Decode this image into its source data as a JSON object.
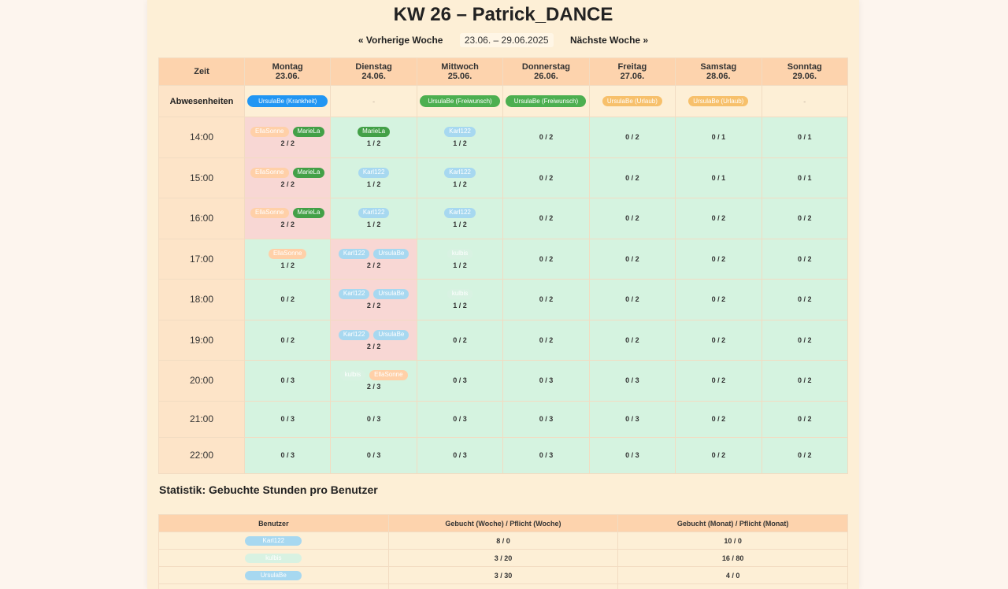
{
  "title": "KW 26 – Patrick_DANCE",
  "nav": {
    "prev": "« Vorherige Woche",
    "range": "23.06. – 29.06.2025",
    "next": "Nächste Woche »"
  },
  "schedule": {
    "time_header": "Zeit",
    "absences_label": "Abwesenheiten",
    "days": [
      {
        "name": "Montag",
        "date": "23.06."
      },
      {
        "name": "Dienstag",
        "date": "24.06."
      },
      {
        "name": "Mittwoch",
        "date": "25.06."
      },
      {
        "name": "Donnerstag",
        "date": "26.06."
      },
      {
        "name": "Freitag",
        "date": "27.06."
      },
      {
        "name": "Samstag",
        "date": "28.06."
      },
      {
        "name": "Sonntag",
        "date": "29.06."
      }
    ],
    "absences": [
      {
        "text": "UrsulaBe (Krankheit)",
        "color": "#2196f3",
        "style": "wide"
      },
      {
        "text": "-",
        "color": "",
        "style": "none"
      },
      {
        "text": "UrsulaBe (Freiwunsch)",
        "color": "#4caf50",
        "style": "wide"
      },
      {
        "text": "UrsulaBe (Freiwunsch)",
        "color": "#4caf50",
        "style": "wide"
      },
      {
        "text": "UrsulaBe (Urlaub)",
        "color": "#f7c06b",
        "style": "small"
      },
      {
        "text": "UrsulaBe (Urlaub)",
        "color": "#f7c06b",
        "style": "small"
      },
      {
        "text": "-",
        "color": "",
        "style": "none"
      }
    ],
    "rows": [
      {
        "time": "14:00",
        "cells": [
          {
            "full": true,
            "count": "2 / 2",
            "chips": [
              {
                "name": "EllaSonne",
                "color": "#ffd0a8"
              },
              {
                "name": "MarieLa",
                "color": "#43a047"
              }
            ]
          },
          {
            "full": false,
            "count": "1 / 2",
            "chips": [
              {
                "name": "MarieLa",
                "color": "#43a047"
              }
            ]
          },
          {
            "full": false,
            "count": "1 / 2",
            "chips": [
              {
                "name": "Karl122",
                "color": "#a7d8f0"
              }
            ]
          },
          {
            "full": false,
            "count": "0 / 2",
            "chips": []
          },
          {
            "full": false,
            "count": "0 / 2",
            "chips": []
          },
          {
            "full": false,
            "count": "0 / 1",
            "chips": []
          },
          {
            "full": false,
            "count": "0 / 1",
            "chips": []
          }
        ]
      },
      {
        "time": "15:00",
        "cells": [
          {
            "full": true,
            "count": "2 / 2",
            "chips": [
              {
                "name": "EllaSonne",
                "color": "#ffd0a8"
              },
              {
                "name": "MarieLa",
                "color": "#43a047"
              }
            ]
          },
          {
            "full": false,
            "count": "1 / 2",
            "chips": [
              {
                "name": "Karl122",
                "color": "#a7d8f0"
              }
            ]
          },
          {
            "full": false,
            "count": "1 / 2",
            "chips": [
              {
                "name": "Karl122",
                "color": "#a7d8f0"
              }
            ]
          },
          {
            "full": false,
            "count": "0 / 2",
            "chips": []
          },
          {
            "full": false,
            "count": "0 / 2",
            "chips": []
          },
          {
            "full": false,
            "count": "0 / 1",
            "chips": []
          },
          {
            "full": false,
            "count": "0 / 1",
            "chips": []
          }
        ]
      },
      {
        "time": "16:00",
        "cells": [
          {
            "full": true,
            "count": "2 / 2",
            "chips": [
              {
                "name": "EllaSonne",
                "color": "#ffd0a8"
              },
              {
                "name": "MarieLa",
                "color": "#43a047"
              }
            ]
          },
          {
            "full": false,
            "count": "1 / 2",
            "chips": [
              {
                "name": "Karl122",
                "color": "#a7d8f0"
              }
            ]
          },
          {
            "full": false,
            "count": "1 / 2",
            "chips": [
              {
                "name": "Karl122",
                "color": "#a7d8f0"
              }
            ]
          },
          {
            "full": false,
            "count": "0 / 2",
            "chips": []
          },
          {
            "full": false,
            "count": "0 / 2",
            "chips": []
          },
          {
            "full": false,
            "count": "0 / 2",
            "chips": []
          },
          {
            "full": false,
            "count": "0 / 2",
            "chips": []
          }
        ]
      },
      {
        "time": "17:00",
        "cells": [
          {
            "full": false,
            "count": "1 / 2",
            "chips": [
              {
                "name": "EllaSonne",
                "color": "#ffd0a8"
              }
            ]
          },
          {
            "full": true,
            "count": "2 / 2",
            "chips": [
              {
                "name": "Karl122",
                "color": "#a7d8f0"
              },
              {
                "name": "UrsulaBe",
                "color": "#a7d8f0"
              }
            ]
          },
          {
            "full": false,
            "count": "1 / 2",
            "chips": [
              {
                "name": "kulbis",
                "color": "#d8f2e2"
              }
            ]
          },
          {
            "full": false,
            "count": "0 / 2",
            "chips": []
          },
          {
            "full": false,
            "count": "0 / 2",
            "chips": []
          },
          {
            "full": false,
            "count": "0 / 2",
            "chips": []
          },
          {
            "full": false,
            "count": "0 / 2",
            "chips": []
          }
        ]
      },
      {
        "time": "18:00",
        "cells": [
          {
            "full": false,
            "count": "0 / 2",
            "chips": []
          },
          {
            "full": true,
            "count": "2 / 2",
            "chips": [
              {
                "name": "Karl122",
                "color": "#a7d8f0"
              },
              {
                "name": "UrsulaBe",
                "color": "#a7d8f0"
              }
            ]
          },
          {
            "full": false,
            "count": "1 / 2",
            "chips": [
              {
                "name": "kulbis",
                "color": "#d8f2e2"
              }
            ]
          },
          {
            "full": false,
            "count": "0 / 2",
            "chips": []
          },
          {
            "full": false,
            "count": "0 / 2",
            "chips": []
          },
          {
            "full": false,
            "count": "0 / 2",
            "chips": []
          },
          {
            "full": false,
            "count": "0 / 2",
            "chips": []
          }
        ]
      },
      {
        "time": "19:00",
        "cells": [
          {
            "full": false,
            "count": "0 / 2",
            "chips": []
          },
          {
            "full": true,
            "count": "2 / 2",
            "chips": [
              {
                "name": "Karl122",
                "color": "#a7d8f0"
              },
              {
                "name": "UrsulaBe",
                "color": "#a7d8f0"
              }
            ]
          },
          {
            "full": false,
            "count": "0 / 2",
            "chips": []
          },
          {
            "full": false,
            "count": "0 / 2",
            "chips": []
          },
          {
            "full": false,
            "count": "0 / 2",
            "chips": []
          },
          {
            "full": false,
            "count": "0 / 2",
            "chips": []
          },
          {
            "full": false,
            "count": "0 / 2",
            "chips": []
          }
        ]
      },
      {
        "time": "20:00",
        "cells": [
          {
            "full": false,
            "count": "0 / 3",
            "chips": []
          },
          {
            "full": false,
            "count": "2 / 3",
            "chips": [
              {
                "name": "kulbis",
                "color": "#d8f2e2"
              },
              {
                "name": "EllaSonne",
                "color": "#ffd0a8"
              }
            ]
          },
          {
            "full": false,
            "count": "0 / 3",
            "chips": []
          },
          {
            "full": false,
            "count": "0 / 3",
            "chips": []
          },
          {
            "full": false,
            "count": "0 / 3",
            "chips": []
          },
          {
            "full": false,
            "count": "0 / 2",
            "chips": []
          },
          {
            "full": false,
            "count": "0 / 2",
            "chips": []
          }
        ]
      },
      {
        "time": "21:00",
        "cells": [
          {
            "full": false,
            "count": "0 / 3",
            "chips": []
          },
          {
            "full": false,
            "count": "0 / 3",
            "chips": []
          },
          {
            "full": false,
            "count": "0 / 3",
            "chips": []
          },
          {
            "full": false,
            "count": "0 / 3",
            "chips": []
          },
          {
            "full": false,
            "count": "0 / 3",
            "chips": []
          },
          {
            "full": false,
            "count": "0 / 2",
            "chips": []
          },
          {
            "full": false,
            "count": "0 / 2",
            "chips": []
          }
        ]
      },
      {
        "time": "22:00",
        "cells": [
          {
            "full": false,
            "count": "0 / 3",
            "chips": []
          },
          {
            "full": false,
            "count": "0 / 3",
            "chips": []
          },
          {
            "full": false,
            "count": "0 / 3",
            "chips": []
          },
          {
            "full": false,
            "count": "0 / 3",
            "chips": []
          },
          {
            "full": false,
            "count": "0 / 3",
            "chips": []
          },
          {
            "full": false,
            "count": "0 / 2",
            "chips": []
          },
          {
            "full": false,
            "count": "0 / 2",
            "chips": []
          }
        ]
      }
    ]
  },
  "stats": {
    "title": "Statistik: Gebuchte Stunden pro Benutzer",
    "headers": [
      "Benutzer",
      "Gebucht (Woche) / Pflicht (Woche)",
      "Gebucht (Monat) / Pflicht (Monat)"
    ],
    "rows": [
      {
        "user": "Karl122",
        "color": "#a7d8f0",
        "week": "8 / 0",
        "month": "10 / 0"
      },
      {
        "user": "kulbis",
        "color": "#d8f2e2",
        "week": "3 / 20",
        "month": "16 / 80"
      },
      {
        "user": "UrsulaBe",
        "color": "#a7d8f0",
        "week": "3 / 30",
        "month": "4 / 0"
      },
      {
        "user": "",
        "color": "#43a047",
        "week": "",
        "month": ""
      }
    ]
  },
  "colors": {
    "page_bg": "#fdf5ee",
    "panel_bg": "#fdefd6",
    "header_bg": "#fdd3ad",
    "slot_full": "#f8d7d4",
    "slot_open": "#d5f3e0"
  }
}
